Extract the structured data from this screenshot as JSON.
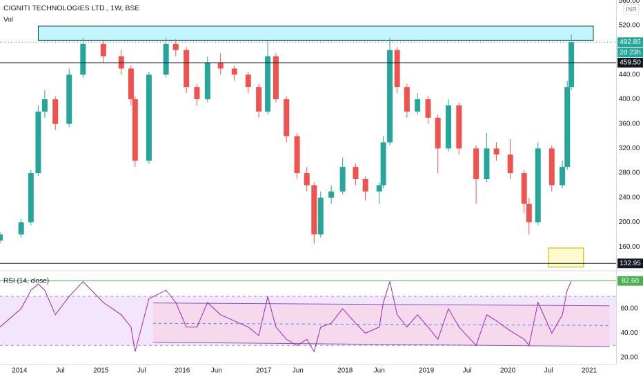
{
  "chart_data": [
    {
      "type": "candlestick",
      "title": "CIGNITI TECHNOLOGIES LTD., 1W, BSE",
      "indicator_label": "Vol",
      "currency": "INR",
      "up_color": "#26a69a",
      "down_color": "#ef5350",
      "grid": false,
      "xlim": [
        2013.76,
        2021.33
      ],
      "ylim": [
        126.5,
        561.5
      ],
      "yticks": [
        {
          "value": 560,
          "label": "560.00"
        },
        {
          "value": 520,
          "label": "520.00"
        },
        {
          "value": 440,
          "label": "440.00"
        },
        {
          "value": 400,
          "label": "400.00"
        },
        {
          "value": 360,
          "label": "360.00"
        },
        {
          "value": 320,
          "label": "320.00"
        },
        {
          "value": 280,
          "label": "280.00"
        },
        {
          "value": 240,
          "label": "240.00"
        },
        {
          "value": 200,
          "label": "200.00"
        },
        {
          "value": 160,
          "label": "160.00"
        }
      ],
      "x": [
        2013.76,
        2014.02,
        2014.14,
        2014.23,
        2014.31,
        2014.44,
        2014.61,
        2014.78,
        2015.03,
        2015.25,
        2015.37,
        2015.42,
        2015.59,
        2015.8,
        2015.92,
        2016.05,
        2016.18,
        2016.31,
        2016.47,
        2016.64,
        2016.81,
        2016.94,
        2017.05,
        2017.15,
        2017.28,
        2017.41,
        2017.53,
        2017.62,
        2017.7,
        2017.83,
        2017.97,
        2018.13,
        2018.25,
        2018.42,
        2018.47,
        2018.55,
        2018.64,
        2018.76,
        2018.89,
        2019.02,
        2019.14,
        2019.27,
        2019.4,
        2019.61,
        2019.74,
        2019.86,
        2020.03,
        2020.2,
        2020.26,
        2020.37,
        2020.54,
        2020.67,
        2020.73,
        2020.78
      ],
      "open": [
        170,
        180,
        200,
        280,
        380,
        400,
        360,
        440,
        490,
        470,
        450,
        400,
        300,
        440,
        490,
        480,
        420,
        400,
        460,
        450,
        440,
        420,
        380,
        470,
        400,
        340,
        280,
        260,
        180,
        240,
        250,
        290,
        270,
        250,
        260,
        330,
        480,
        420,
        380,
        400,
        370,
        320,
        390,
        320,
        270,
        320,
        310,
        280,
        230,
        200,
        320,
        260,
        290,
        420
      ],
      "high": [
        185,
        205,
        285,
        390,
        415,
        405,
        450,
        500,
        495,
        480,
        455,
        405,
        445,
        500,
        498,
        485,
        425,
        470,
        475,
        455,
        445,
        425,
        495,
        475,
        405,
        345,
        290,
        265,
        250,
        260,
        305,
        295,
        275,
        265,
        340,
        500,
        485,
        425,
        410,
        405,
        375,
        400,
        395,
        325,
        345,
        330,
        335,
        285,
        240,
        330,
        325,
        300,
        430,
        505
      ],
      "low": [
        165,
        175,
        195,
        275,
        370,
        350,
        355,
        435,
        460,
        440,
        390,
        290,
        295,
        435,
        470,
        410,
        390,
        395,
        440,
        430,
        410,
        370,
        375,
        395,
        330,
        270,
        250,
        165,
        175,
        230,
        245,
        260,
        235,
        230,
        255,
        325,
        410,
        370,
        375,
        360,
        280,
        315,
        310,
        230,
        265,
        300,
        270,
        215,
        180,
        195,
        250,
        255,
        285,
        415
      ],
      "close": [
        180,
        200,
        280,
        380,
        400,
        360,
        440,
        490,
        470,
        450,
        400,
        300,
        440,
        490,
        480,
        420,
        400,
        460,
        450,
        440,
        420,
        380,
        470,
        400,
        340,
        280,
        260,
        180,
        240,
        250,
        290,
        270,
        250,
        260,
        330,
        480,
        420,
        380,
        400,
        370,
        320,
        390,
        320,
        270,
        320,
        310,
        280,
        230,
        200,
        320,
        260,
        290,
        420,
        492.85
      ],
      "zones": [
        {
          "x": [
            2014.23,
            2021.05
          ],
          "y": [
            496,
            519
          ],
          "color": "#b9f3fb",
          "border": "#0c3c47"
        },
        {
          "x": [
            2020.5,
            2020.93
          ],
          "y": [
            127,
            158
          ],
          "color": "#fff9c4",
          "border": "#c8a800"
        }
      ],
      "hlines": [
        {
          "value": 492.85,
          "label": "492.85",
          "color": "#26a69a",
          "style": "dotted",
          "countdown": "2d 23h"
        },
        {
          "value": 459.5,
          "label": "459.50",
          "color": "#131722",
          "style": "solid"
        },
        {
          "value": 132.95,
          "label": "132.95",
          "color": "#131722",
          "style": "solid"
        }
      ]
    },
    {
      "type": "line",
      "title": "RSI (14, close)",
      "color": "#9c27b0",
      "xlim": [
        2013.76,
        2021.33
      ],
      "ylim": [
        15,
        88
      ],
      "yticks": [
        {
          "value": 60,
          "label": "60.00"
        },
        {
          "value": 40,
          "label": "40.00"
        },
        {
          "value": 20,
          "label": "20.00"
        }
      ],
      "xticks": [
        2014,
        {
          "value": 2014.5,
          "label": "Jul"
        },
        2015,
        {
          "value": 2015.5,
          "label": "Jul"
        },
        2016,
        {
          "value": 2016.42,
          "label": "Jun"
        },
        2017,
        {
          "value": 2017.42,
          "label": "Jun"
        },
        2018,
        {
          "value": 2018.42,
          "label": "Jun"
        },
        2019,
        {
          "value": 2019.5,
          "label": "Jul"
        },
        2020,
        {
          "value": 2020.5,
          "label": "Jul"
        },
        2021
      ],
      "values": [
        45,
        60,
        75,
        80,
        75,
        55,
        70,
        82,
        65,
        55,
        45,
        25,
        68,
        75,
        65,
        45,
        45,
        65,
        55,
        50,
        45,
        38,
        70,
        45,
        35,
        30,
        35,
        25,
        45,
        48,
        60,
        48,
        40,
        45,
        65,
        82,
        55,
        45,
        55,
        45,
        35,
        60,
        45,
        30,
        55,
        50,
        42,
        35,
        30,
        65,
        40,
        55,
        75,
        82.6
      ],
      "levels": [
        70,
        30
      ],
      "band_color": "#f3e5fc",
      "channel_color": "#f7d9ee",
      "trend_lines": [
        {
          "x": [
            2015.64,
            2021.25
          ],
          "y": [
            64.6,
            62.3
          ],
          "color": "#7e57c2",
          "style": "solid"
        },
        {
          "x": [
            2015.64,
            2021.25
          ],
          "y": [
            32.6,
            29.1
          ],
          "color": "#7e57c2",
          "style": "solid"
        },
        {
          "x": [
            2015.64,
            2021.25
          ],
          "y": [
            48,
            46.3
          ],
          "color": "#2196f3",
          "style": "dashed"
        }
      ],
      "hlines": [
        {
          "value": 82.6,
          "label": "82.60",
          "color": "#4caf50",
          "style": "solid"
        }
      ]
    }
  ]
}
